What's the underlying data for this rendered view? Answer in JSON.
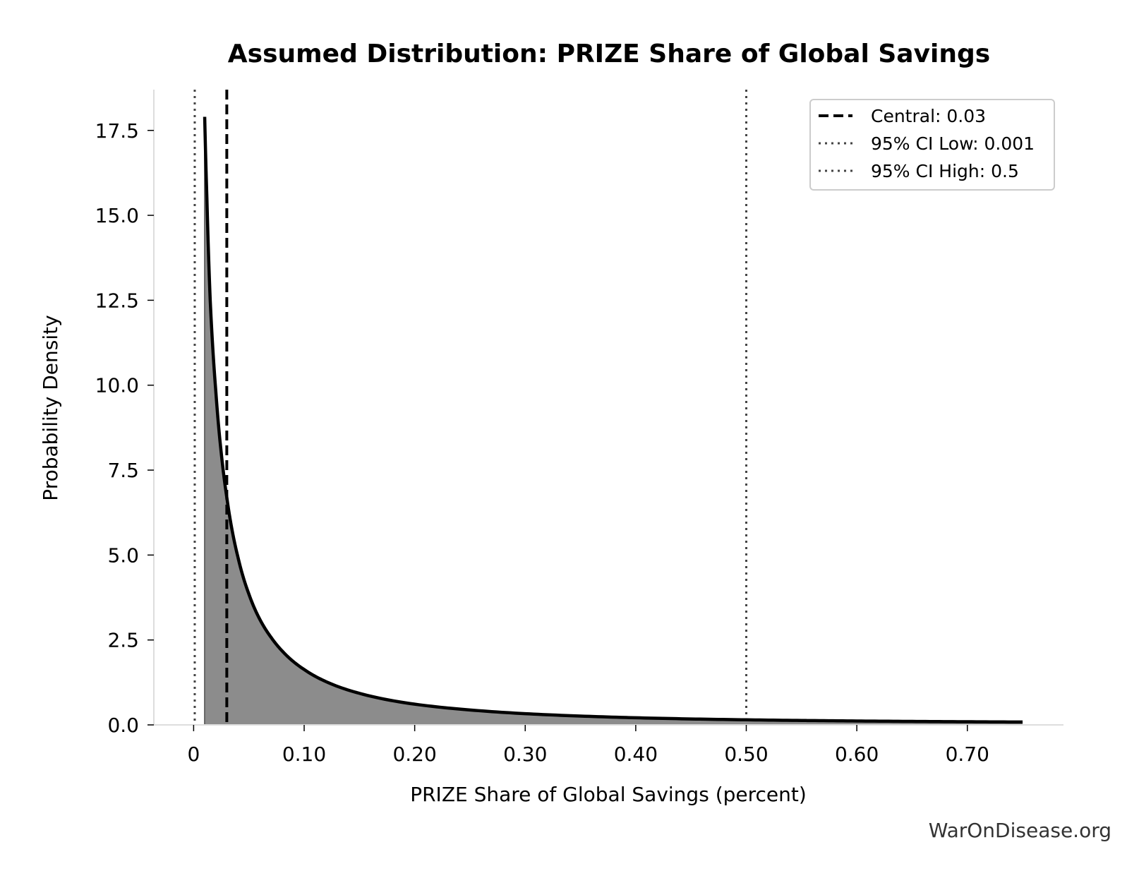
{
  "chart_data": {
    "type": "area",
    "title": "Assumed Distribution: PRIZE Share of Global Savings",
    "xlabel": "PRIZE Share of Global Savings (percent)",
    "ylabel": "Probability Density",
    "xlim": [
      -0.036,
      0.787
    ],
    "ylim": [
      0,
      18.7
    ],
    "x_ticks": [
      0,
      0.1,
      0.2,
      0.3,
      0.4,
      0.5,
      0.6,
      0.7
    ],
    "x_tick_labels": [
      "0",
      "0.10",
      "0.20",
      "0.30",
      "0.40",
      "0.50",
      "0.60",
      "0.70"
    ],
    "y_ticks": [
      0,
      2.5,
      5,
      7.5,
      10,
      12.5,
      15,
      17.5
    ],
    "y_tick_labels": [
      "0.0",
      "2.5",
      "5.0",
      "7.5",
      "10.0",
      "12.5",
      "15.0",
      "17.5"
    ],
    "series": [
      {
        "x": [
          0.01,
          0.012,
          0.015,
          0.02,
          0.025,
          0.03,
          0.04,
          0.05,
          0.06,
          0.07,
          0.08,
          0.1,
          0.12,
          0.15,
          0.2,
          0.25,
          0.3,
          0.35,
          0.4,
          0.45,
          0.5,
          0.55,
          0.6,
          0.65,
          0.7,
          0.75
        ],
        "y": [
          17.9,
          15.5,
          12.5,
          9.85,
          8.0,
          6.7,
          4.95,
          3.85,
          3.1,
          2.58,
          2.18,
          1.63,
          1.27,
          0.93,
          0.61,
          0.44,
          0.33,
          0.26,
          0.21,
          0.175,
          0.15,
          0.13,
          0.115,
          0.103,
          0.093,
          0.085
        ]
      }
    ],
    "reference_lines": [
      {
        "label": "Central: 0.03",
        "x": 0.03,
        "style": "dashed",
        "color": "#000000"
      },
      {
        "label": "95% CI Low: 0.001",
        "x": 0.001,
        "style": "dotted",
        "color": "#444444"
      },
      {
        "label": "95% CI High: 0.5",
        "x": 0.5,
        "style": "dotted",
        "color": "#444444"
      }
    ],
    "fill_color": "#8c8c8c",
    "line_color": "#000000",
    "legend_position": "top-right",
    "grid": false
  },
  "watermark": "WarOnDisease.org"
}
